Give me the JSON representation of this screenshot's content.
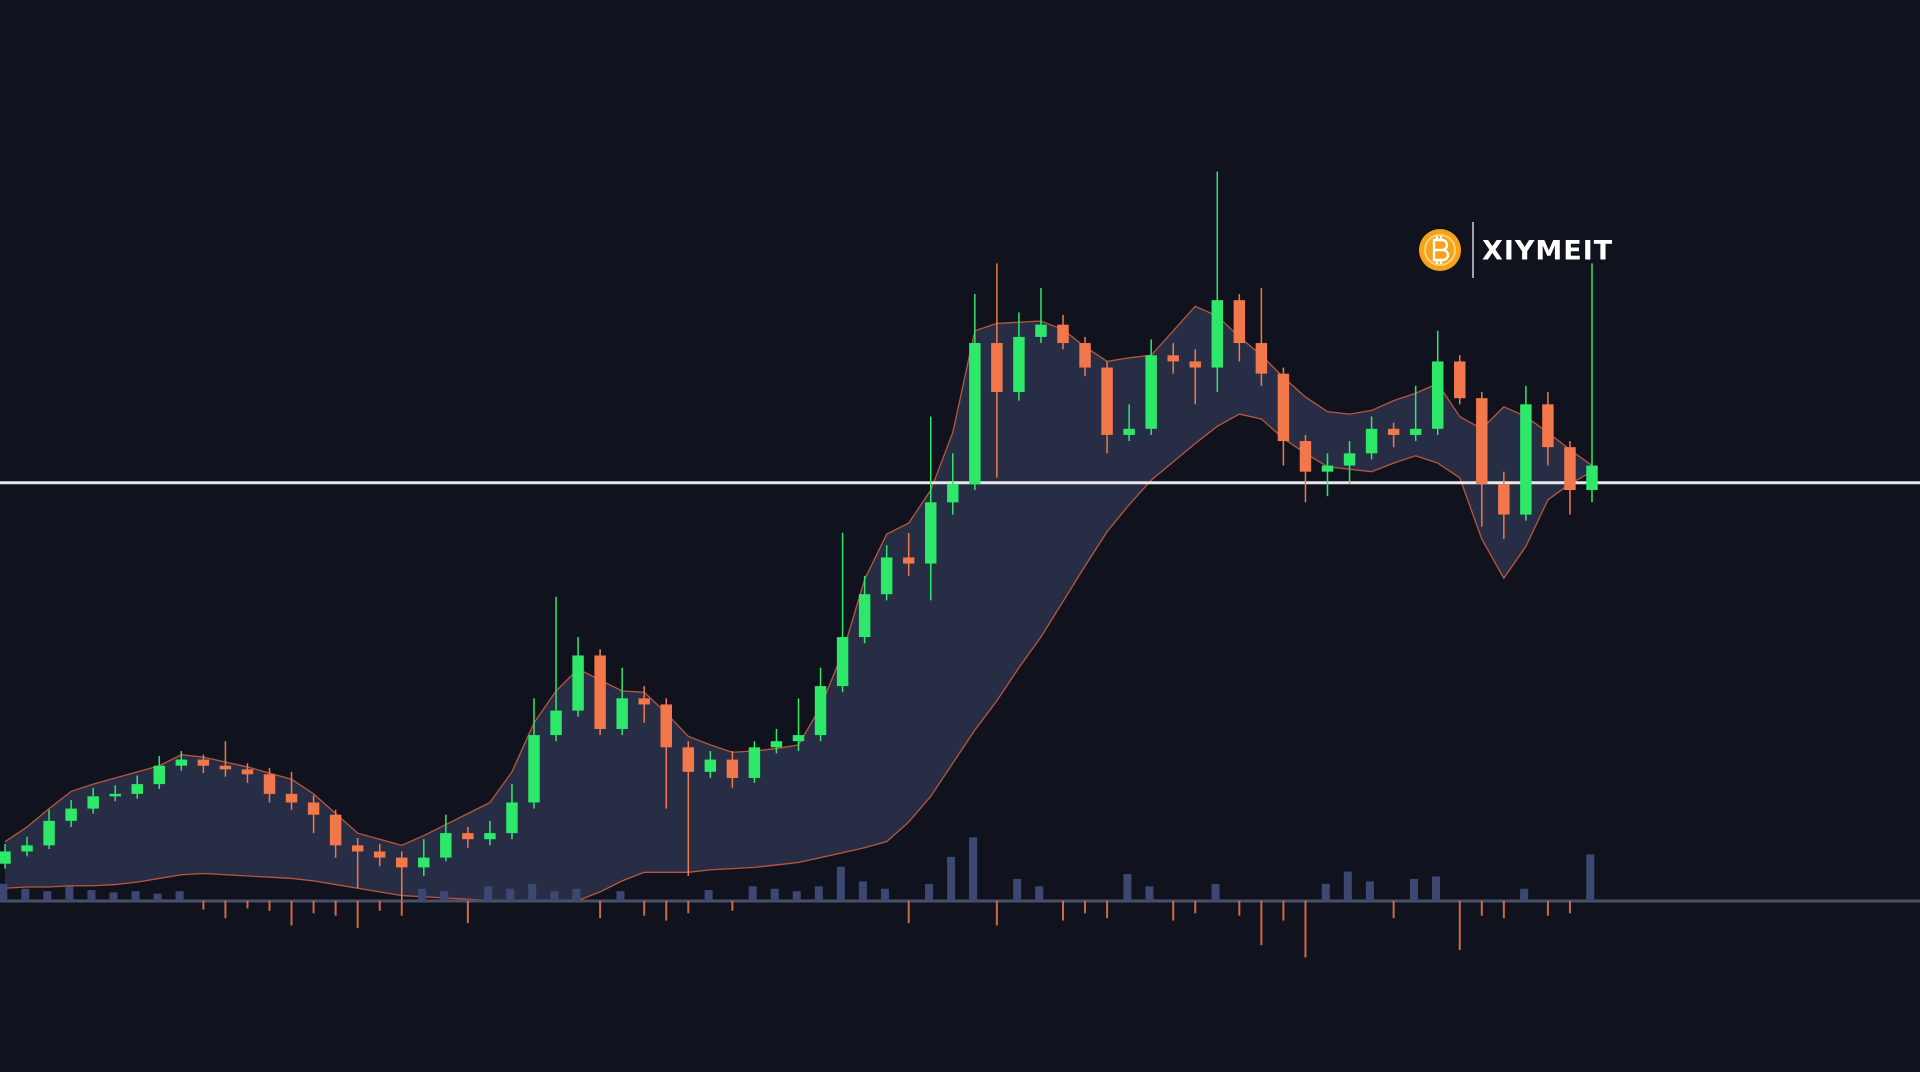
{
  "chart_data": {
    "type": "candlestick",
    "brand": "XIYMEIT",
    "ylim": [
      0,
      875
    ],
    "hline": 481,
    "up_color": "#2ee86a",
    "down_color": "#f2784b",
    "band_color": "#e0653f",
    "volume_color": "#3c4872",
    "hline_color": "#e8e8ec",
    "open": [
      170,
      180,
      185,
      205,
      215,
      225,
      227,
      235,
      250,
      255,
      250,
      247,
      243,
      227,
      220,
      210,
      185,
      180,
      175,
      167,
      175,
      195,
      190,
      195,
      220,
      275,
      295,
      340,
      280,
      305,
      300,
      265,
      245,
      255,
      240,
      265,
      270,
      275,
      315,
      355,
      390,
      420,
      415,
      465,
      480,
      595,
      555,
      600,
      610,
      595,
      575,
      520,
      525,
      585,
      580,
      575,
      630,
      595,
      570,
      515,
      490,
      495,
      505,
      525,
      520,
      525,
      580,
      550,
      480,
      455,
      545,
      510,
      475
    ],
    "high": [
      186,
      192,
      214,
      222,
      232,
      234,
      242,
      258,
      262,
      259,
      270,
      252,
      248,
      245,
      226,
      214,
      191,
      186,
      180,
      190,
      210,
      200,
      205,
      235,
      305,
      388,
      355,
      345,
      330,
      315,
      305,
      270,
      262,
      262,
      270,
      280,
      305,
      330,
      440,
      405,
      430,
      440,
      535,
      505,
      635,
      660,
      620,
      640,
      618,
      600,
      580,
      545,
      598,
      595,
      590,
      735,
      635,
      640,
      575,
      520,
      505,
      515,
      535,
      530,
      560,
      605,
      585,
      555,
      490,
      560,
      555,
      515,
      660
    ],
    "low": [
      166,
      176,
      182,
      200,
      211,
      221,
      223,
      231,
      246,
      244,
      241,
      236,
      220,
      214,
      195,
      175,
      150,
      168,
      140,
      160,
      172,
      183,
      185,
      190,
      215,
      270,
      290,
      275,
      275,
      285,
      215,
      160,
      240,
      232,
      236,
      260,
      262,
      270,
      310,
      350,
      385,
      405,
      385,
      455,
      475,
      485,
      548,
      595,
      590,
      568,
      505,
      515,
      520,
      570,
      545,
      555,
      580,
      560,
      495,
      465,
      470,
      480,
      500,
      510,
      515,
      520,
      545,
      445,
      435,
      450,
      495,
      455,
      465
    ],
    "close": [
      180,
      185,
      205,
      215,
      225,
      227,
      235,
      250,
      255,
      250,
      247,
      243,
      227,
      220,
      210,
      185,
      180,
      175,
      167,
      175,
      195,
      190,
      195,
      220,
      275,
      295,
      340,
      280,
      305,
      300,
      265,
      245,
      255,
      240,
      265,
      270,
      275,
      315,
      355,
      390,
      420,
      415,
      465,
      480,
      595,
      555,
      600,
      610,
      595,
      575,
      520,
      525,
      585,
      580,
      575,
      630,
      595,
      570,
      515,
      490,
      495,
      505,
      525,
      520,
      525,
      580,
      550,
      480,
      455,
      545,
      510,
      475,
      495
    ],
    "volume": [
      14,
      10,
      8,
      12,
      9,
      7,
      8,
      6,
      8,
      7,
      14,
      6,
      8,
      20,
      10,
      12,
      22,
      8,
      12,
      10,
      8,
      18,
      12,
      10,
      14,
      8,
      10,
      14,
      8,
      12,
      16,
      10,
      9,
      8,
      12,
      10,
      8,
      12,
      28,
      16,
      10,
      18,
      14,
      36,
      52,
      20,
      18,
      12,
      16,
      10,
      14,
      22,
      12,
      16,
      10,
      14,
      12,
      36,
      16,
      46,
      14,
      24,
      16,
      14,
      18,
      20,
      40,
      12,
      14,
      10,
      12,
      10,
      38
    ],
    "band_upper": [
      188,
      200,
      215,
      229,
      235,
      240,
      245,
      250,
      259,
      257,
      253,
      249,
      244,
      239,
      227,
      211,
      195,
      190,
      185,
      193,
      202,
      211,
      220,
      245,
      285,
      311,
      329,
      320,
      311,
      310,
      293,
      274,
      267,
      261,
      262,
      264,
      267,
      298,
      342,
      402,
      439,
      448,
      475,
      522,
      605,
      611,
      612,
      613,
      606,
      592,
      580,
      583,
      585,
      605,
      625,
      617,
      600,
      585,
      567,
      551,
      539,
      537,
      540,
      548,
      554,
      562,
      535,
      525,
      543,
      535,
      522,
      508,
      495
    ],
    "band_lower": [
      150,
      151,
      151,
      152,
      152,
      153,
      155,
      158,
      161,
      162,
      161,
      160,
      159,
      158,
      156,
      153,
      150,
      147,
      144,
      143,
      142,
      141,
      140,
      140,
      140,
      140,
      140,
      147,
      156,
      163,
      163,
      163,
      165,
      166,
      167,
      169,
      171,
      175,
      179,
      183,
      188,
      204,
      225,
      252,
      279,
      303,
      330,
      355,
      384,
      413,
      441,
      463,
      483,
      498,
      513,
      527,
      537,
      533,
      517,
      505,
      494,
      492,
      490,
      497,
      503,
      497,
      485,
      435,
      403,
      429,
      467,
      480,
      490
    ]
  }
}
